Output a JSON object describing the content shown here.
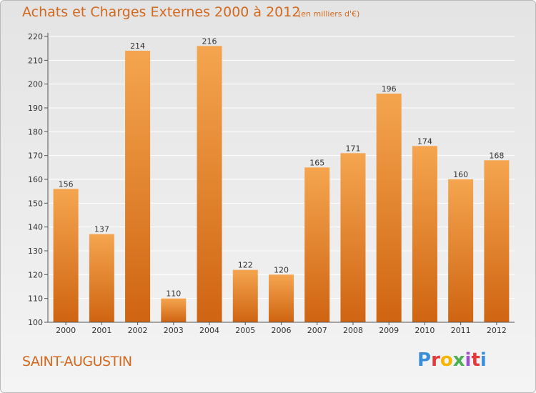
{
  "header": {
    "title": "Achats et Charges Externes 2000 à 2012",
    "unit_note": "(en milliers d'€)"
  },
  "footer": {
    "place_name": "SAINT-AUGUSTIN",
    "logo_text": "Proxiti",
    "logo_colors": [
      "#3a8fd8",
      "#e23b3b",
      "#f7b500",
      "#4caf50",
      "#9c4fd0",
      "#e23b3b",
      "#3a8fd8"
    ]
  },
  "colors": {
    "bar_top": "#f5a54f",
    "bar_bottom": "#cf6412",
    "accent": "#d2691e",
    "grid": "#ffffff"
  },
  "chart_data": {
    "type": "bar",
    "title": "Achats et Charges Externes 2000 à 2012",
    "subtitle": "(en milliers d'€)",
    "categories": [
      "2000",
      "2001",
      "2002",
      "2003",
      "2004",
      "2005",
      "2006",
      "2007",
      "2008",
      "2009",
      "2010",
      "2011",
      "2012"
    ],
    "values": [
      156,
      137,
      214,
      110,
      216,
      122,
      120,
      165,
      171,
      196,
      174,
      160,
      168
    ],
    "ylim": [
      100,
      220
    ],
    "yticks": [
      100,
      110,
      120,
      130,
      140,
      150,
      160,
      170,
      180,
      190,
      200,
      210,
      220
    ],
    "grid": true,
    "legend": "none"
  }
}
